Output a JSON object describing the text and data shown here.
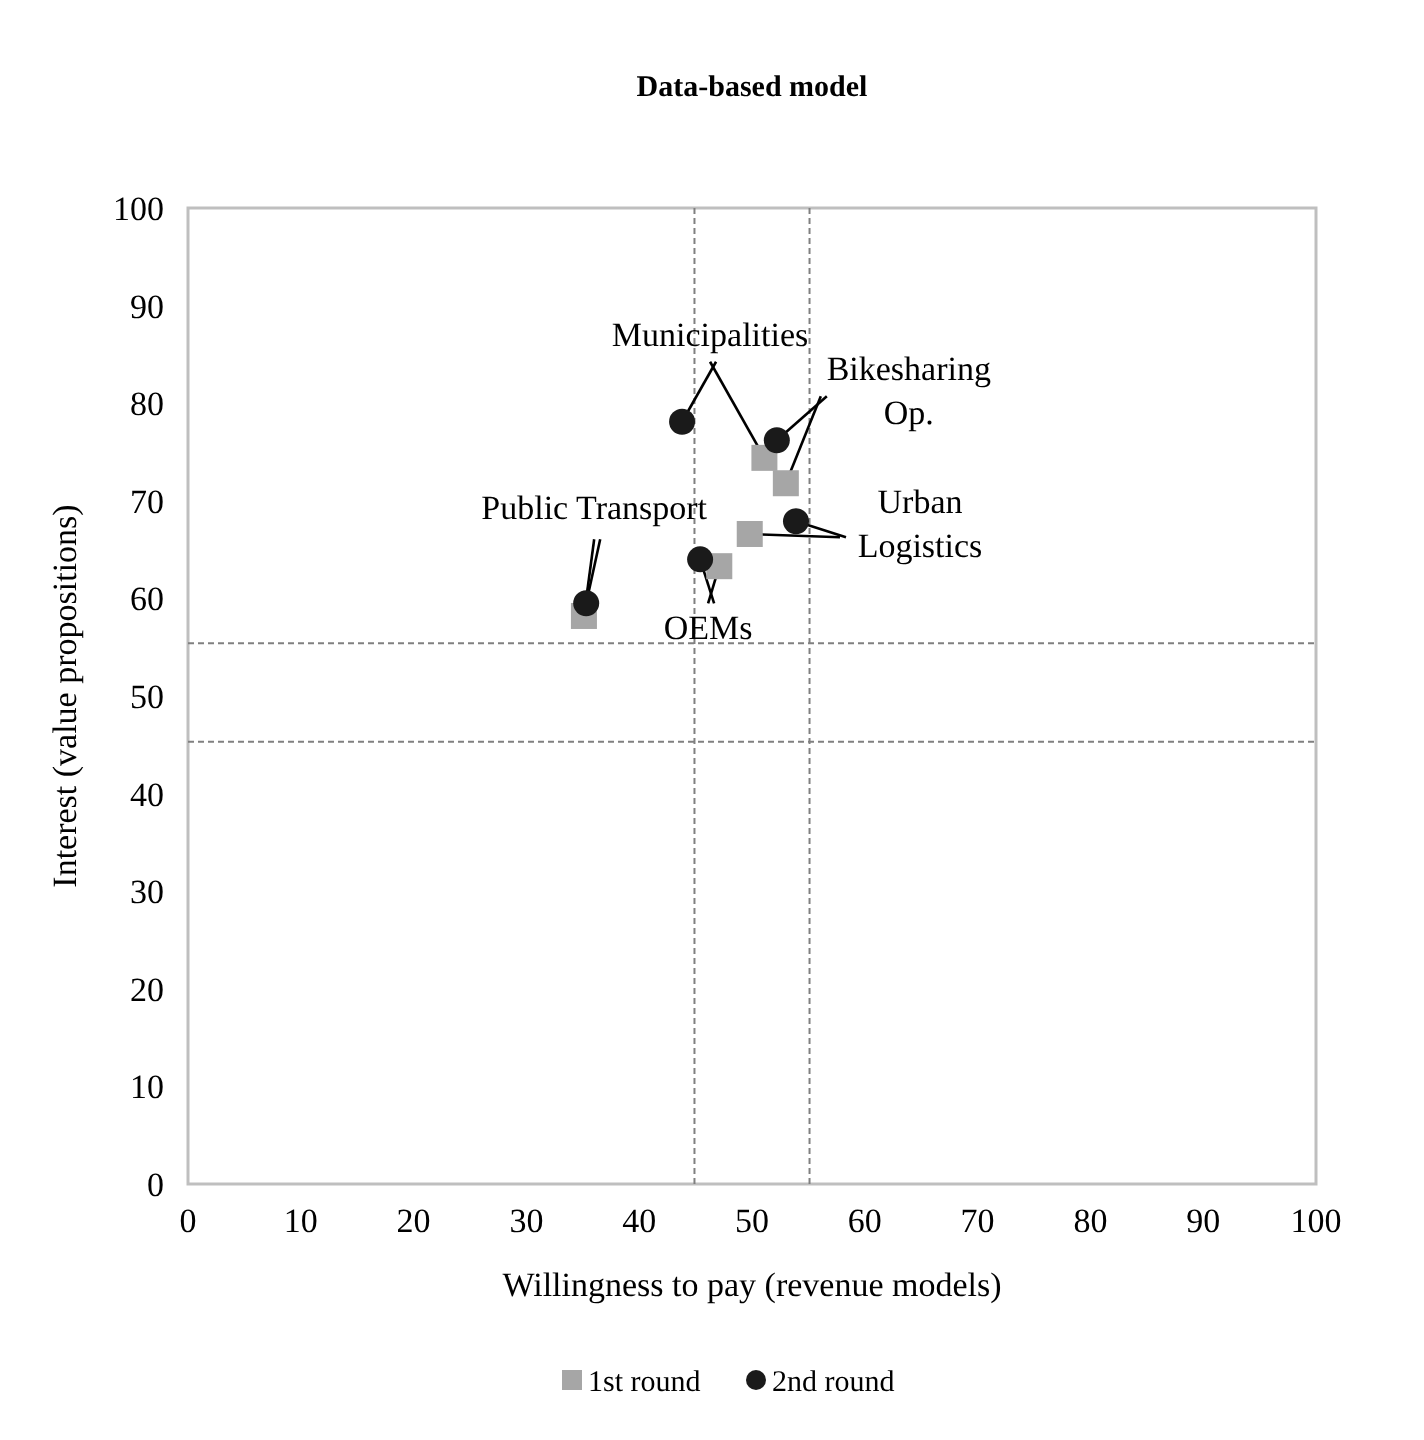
{
  "chart_data": {
    "type": "scatter",
    "title": "Data-based model",
    "xlabel": "Willingness to pay (revenue models)",
    "ylabel": "Interest (value propositions)",
    "xlim": [
      0,
      100
    ],
    "ylim": [
      0,
      100
    ],
    "xticks": [
      0,
      10,
      20,
      30,
      40,
      50,
      60,
      70,
      80,
      90,
      100
    ],
    "yticks": [
      0,
      10,
      20,
      30,
      40,
      50,
      60,
      70,
      80,
      90,
      100
    ],
    "grid": false,
    "legend": "bottom",
    "series": [
      {
        "name": "1st round",
        "color": "#a6a6a6",
        "marker": "square",
        "x": [
          51.1,
          53.0,
          35.1,
          49.8,
          47.1
        ],
        "values": [
          74.4,
          71.8,
          58.2,
          66.6,
          63.3
        ]
      },
      {
        "name": "2nd round",
        "color": "#1a1a1a",
        "marker": "circle",
        "x": [
          43.8,
          52.2,
          35.3,
          53.9,
          45.4
        ],
        "values": [
          78.1,
          76.2,
          59.5,
          67.9,
          64.0
        ]
      }
    ],
    "ref_lines": [
      {
        "axis": "x",
        "value": 44.9,
        "line_style": "dashed",
        "color": "#808080"
      },
      {
        "axis": "x",
        "value": 55.1,
        "line_style": "dashed",
        "color": "#808080"
      },
      {
        "axis": "y",
        "value": 45.3,
        "line_style": "dashed",
        "color": "#808080"
      },
      {
        "axis": "y",
        "value": 55.4,
        "line_style": "dashed",
        "color": "#808080"
      }
    ],
    "annotations": [
      {
        "text": "Municipalities",
        "x": 43.8,
        "y": 78.1
      },
      {
        "text": "Bikesharing Op.",
        "x": 52.2,
        "y": 76.2
      },
      {
        "text": "Public Transport",
        "x": 35.3,
        "y": 59.5
      },
      {
        "text": "Urban Logistics",
        "x": 53.9,
        "y": 67.9
      },
      {
        "text": "OEMs",
        "x": 45.4,
        "y": 64.0
      }
    ]
  }
}
